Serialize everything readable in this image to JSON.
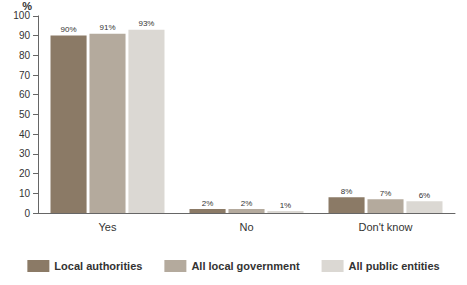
{
  "chart_data": {
    "type": "bar",
    "ylabel": "%",
    "categories": [
      "Yes",
      "No",
      "Don't know"
    ],
    "series": [
      {
        "name": "Local authorities",
        "color": "#8b7a66",
        "values": [
          90,
          2,
          8
        ],
        "value_labels": [
          "90%",
          "2%",
          "8%"
        ]
      },
      {
        "name": "All local government",
        "color": "#b4aa9d",
        "values": [
          91,
          2,
          7
        ],
        "value_labels": [
          "91%",
          "2%",
          "7%"
        ]
      },
      {
        "name": "All public entities",
        "color": "#dbd8d3",
        "values": [
          93,
          1,
          6
        ],
        "value_labels": [
          "93%",
          "1%",
          "6%"
        ]
      }
    ],
    "ylim": [
      0,
      100
    ],
    "yticks": [
      0,
      10,
      20,
      30,
      40,
      50,
      60,
      70,
      80,
      90,
      100
    ],
    "grid": false,
    "legend": "bottom",
    "data_labels": true
  }
}
